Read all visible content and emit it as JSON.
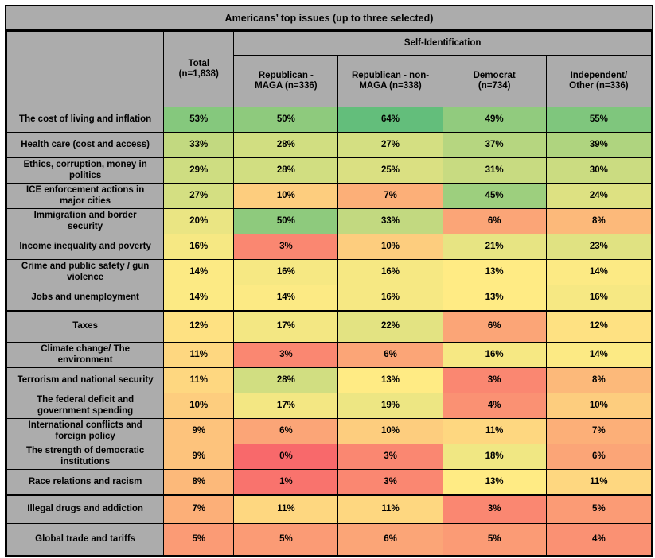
{
  "title": "Americans’ top issues (up to three selected)",
  "chart_data": {
    "type": "heatmap",
    "title": "Americans’ top issues (up to three selected)",
    "value_unit": "%",
    "column_group": {
      "label": "Self-Identification",
      "span_columns": [
        "Republican - MAGA (n=336)",
        "Republican - non-MAGA (n=338)",
        "Democrat (n=734)",
        "Independent/ Other (n=336)"
      ]
    },
    "columns": [
      "Total (n=1,838)",
      "Republican - MAGA (n=336)",
      "Republican - non-MAGA (n=338)",
      "Democrat (n=734)",
      "Independent/ Other (n=336)"
    ],
    "rows": [
      {
        "label": "The cost of living and inflation",
        "values": [
          53,
          50,
          64,
          49,
          55
        ]
      },
      {
        "label": "Health care (cost and access)",
        "values": [
          33,
          28,
          27,
          37,
          39
        ]
      },
      {
        "label": "Ethics, corruption, money in politics",
        "values": [
          29,
          28,
          25,
          31,
          30
        ]
      },
      {
        "label": "ICE enforcement actions in major cities",
        "values": [
          27,
          10,
          7,
          45,
          24
        ]
      },
      {
        "label": "Immigration and border security",
        "values": [
          20,
          50,
          33,
          6,
          8
        ]
      },
      {
        "label": "Income inequality and poverty",
        "values": [
          16,
          3,
          10,
          21,
          23
        ]
      },
      {
        "label": "Crime and public safety / gun violence",
        "values": [
          14,
          16,
          16,
          13,
          14
        ]
      },
      {
        "label": "Jobs and unemployment",
        "values": [
          14,
          14,
          16,
          13,
          16
        ]
      },
      {
        "label": "Taxes",
        "values": [
          12,
          17,
          22,
          6,
          12
        ]
      },
      {
        "label": "Climate change/ The environment",
        "values": [
          11,
          3,
          6,
          16,
          14
        ]
      },
      {
        "label": "Terrorism and national security",
        "values": [
          11,
          28,
          13,
          3,
          8
        ]
      },
      {
        "label": "The federal deficit and government spending",
        "values": [
          10,
          17,
          19,
          4,
          10
        ]
      },
      {
        "label": "International conflicts and foreign policy",
        "values": [
          9,
          6,
          10,
          11,
          7
        ]
      },
      {
        "label": "The strength of democratic institutions",
        "values": [
          9,
          0,
          3,
          18,
          6
        ]
      },
      {
        "label": "Race relations and racism",
        "values": [
          8,
          1,
          3,
          13,
          11
        ]
      },
      {
        "label": "Illegal drugs and addiction",
        "values": [
          7,
          11,
          11,
          3,
          5
        ]
      },
      {
        "label": "Global trade and tariffs",
        "values": [
          5,
          5,
          6,
          5,
          4
        ]
      }
    ],
    "colorscale": {
      "min_value": 0,
      "mid_value": 13,
      "max_value": 64,
      "min_color": "#F8696B",
      "mid_color": "#FFEB84",
      "max_color": "#63BE7B"
    }
  },
  "colors": {
    "header_bg": "#ACACAC",
    "border": "#000000",
    "text": "#000000",
    "page_bg": "#FFFFFF"
  }
}
